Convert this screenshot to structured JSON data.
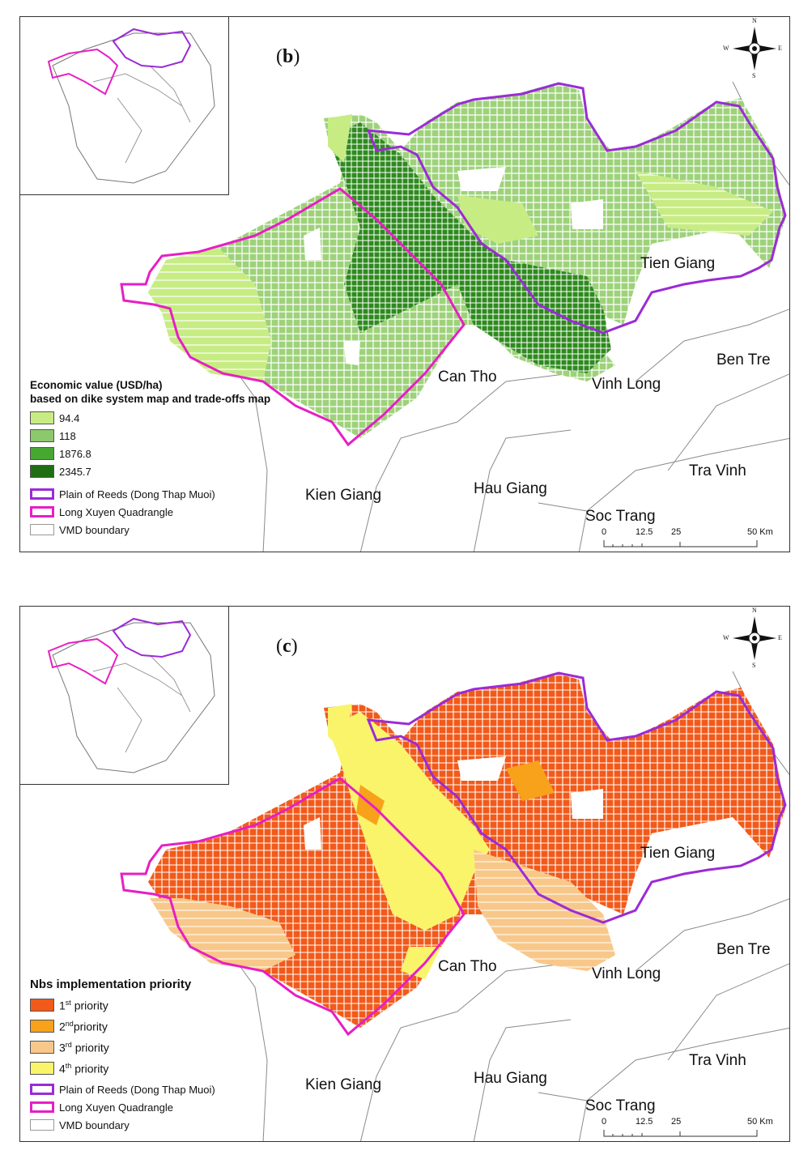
{
  "panels": [
    {
      "id": "b",
      "letter": "b",
      "legend": {
        "title_line1": "Economic value (USD/ha)",
        "title_line2": "based on dike system map and trade-offs map",
        "classes": [
          {
            "label": "94.4",
            "color": "#c8ec84"
          },
          {
            "label": "118",
            "color": "#8cc86c"
          },
          {
            "label": "1876.8",
            "color": "#46a830"
          },
          {
            "label": "2345.7",
            "color": "#1f6e14"
          }
        ]
      }
    },
    {
      "id": "c",
      "letter": "c",
      "legend": {
        "title": "Nbs implementation priority",
        "classes": [
          {
            "num": "1",
            "sup": "st",
            "text": "priority",
            "color": "#f25a1a"
          },
          {
            "num": "2",
            "sup": "nd",
            "text": "priority",
            "color": "#f7a21a"
          },
          {
            "num": "3",
            "sup": "rd",
            "text": "priority",
            "color": "#f8c88a"
          },
          {
            "num": "4",
            "sup": "th",
            "text": "priority",
            "color": "#f9f46a"
          }
        ]
      }
    }
  ],
  "boundaries": [
    {
      "label": "Plain of Reeds (Dong Thap Muoi)",
      "color": "#9b2bd6"
    },
    {
      "label": "Long Xuyen Quadrangle",
      "color": "#e61fc4"
    },
    {
      "label": "VMD boundary",
      "color": "#999999"
    }
  ],
  "places": {
    "tien_giang": "Tien Giang",
    "ben_tre": "Ben Tre",
    "can_tho": "Can Tho",
    "vinh_long": "Vinh Long",
    "tra_vinh": "Tra Vinh",
    "kien_giang": "Kien Giang",
    "hau_giang": "Hau Giang",
    "soc_trang": "Soc Trang"
  },
  "scalebar": {
    "ticks": [
      "0",
      "12.5",
      "25",
      "50 Km"
    ]
  },
  "compass": {
    "n": "N",
    "s": "S",
    "e": "E",
    "w": "W"
  }
}
